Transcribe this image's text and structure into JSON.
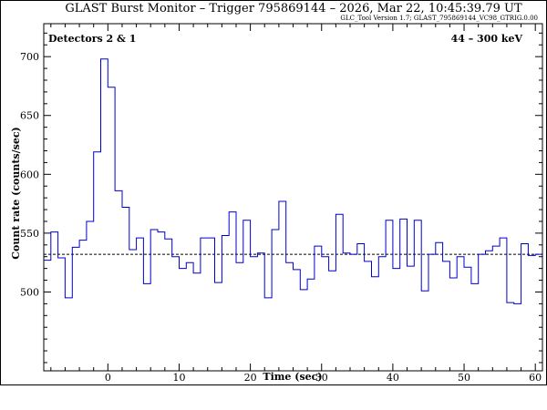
{
  "chart_data": {
    "type": "line",
    "title": "GLAST Burst Monitor  –  Trigger 795869144  –  2026, Mar 22, 10:45:39.79 UT",
    "subtitle": "GLC_Tool Version 1.7; GLAST_795869144_VC98_GTRIG.0.00",
    "xlabel": "Time (sec)",
    "ylabel": "Count rate (counts/sec)",
    "left_note": "Detectors 2 & 1",
    "right_note": "44 – 300 keV",
    "xlim": [
      -9,
      61
    ],
    "ylim": [
      433,
      728
    ],
    "xticks": [
      0,
      10,
      20,
      30,
      40,
      50,
      60
    ],
    "yticks": [
      500,
      550,
      600,
      650,
      700
    ],
    "background_level": 532,
    "step_edges": [
      -9,
      -8,
      -7,
      -6,
      -5,
      -4,
      -3,
      -2,
      -1,
      0,
      1,
      2,
      3,
      4,
      5,
      6,
      7,
      8,
      9,
      10,
      11,
      12,
      13,
      14,
      15,
      16,
      17,
      18,
      19,
      20,
      21,
      22,
      23,
      24,
      25,
      26,
      27,
      28,
      29,
      30,
      31,
      32,
      33,
      34,
      35,
      36,
      37,
      38,
      39,
      40,
      41,
      42,
      43,
      44,
      45,
      46,
      47,
      48,
      49,
      50,
      51,
      52,
      53,
      54,
      55,
      56,
      57,
      58,
      59,
      60,
      61
    ],
    "counts": [
      527,
      551,
      529,
      495,
      538,
      544,
      560,
      619,
      698,
      674,
      586,
      572,
      536,
      546,
      507,
      553,
      551,
      545,
      530,
      520,
      525,
      516,
      546,
      546,
      508,
      548,
      568,
      525,
      561,
      530,
      533,
      495,
      553,
      577,
      525,
      519,
      502,
      511,
      539,
      530,
      518,
      566,
      533,
      532,
      541,
      526,
      513,
      530,
      561,
      520,
      562,
      522,
      561,
      501,
      532,
      542,
      526,
      512,
      530,
      521,
      507,
      532,
      535,
      539,
      546,
      491,
      490,
      541,
      531,
      532
    ]
  }
}
